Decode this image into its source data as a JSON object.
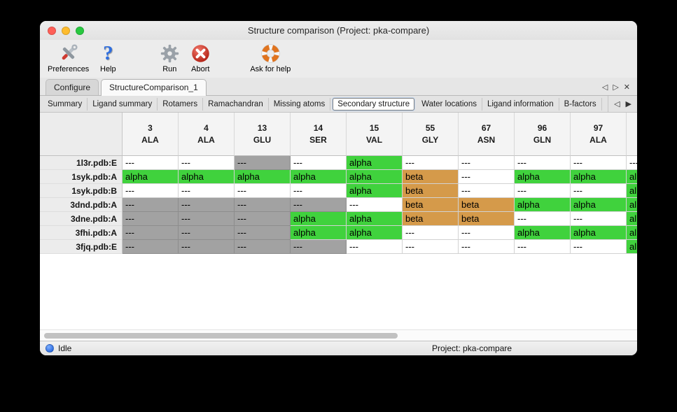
{
  "window": {
    "title": "Structure comparison (Project: pka-compare)"
  },
  "toolbar": {
    "items": [
      {
        "label": "Preferences",
        "icon": "tools-icon"
      },
      {
        "label": "Help",
        "icon": "question-icon"
      },
      {
        "label": "Run",
        "icon": "gear-icon"
      },
      {
        "label": "Abort",
        "icon": "abort-icon"
      },
      {
        "label": "Ask for help",
        "icon": "lifering-icon"
      }
    ]
  },
  "tabs": {
    "items": [
      {
        "label": "Configure",
        "active": false
      },
      {
        "label": "StructureComparison_1",
        "active": true
      }
    ]
  },
  "subtabs": {
    "items": [
      "Summary",
      "Ligand summary",
      "Rotamers",
      "Ramachandran",
      "Missing atoms",
      "Secondary structure",
      "Water locations",
      "Ligand information",
      "B-factors"
    ],
    "selected": "Secondary structure"
  },
  "icons": {
    "tab_prev": "◁",
    "tab_next": "▷",
    "tab_close": "✕",
    "subtab_prev": "◁",
    "subtab_next": "▶"
  },
  "table": {
    "columns": [
      {
        "number": "3",
        "residue": "ALA"
      },
      {
        "number": "4",
        "residue": "ALA"
      },
      {
        "number": "13",
        "residue": "GLU"
      },
      {
        "number": "14",
        "residue": "SER"
      },
      {
        "number": "15",
        "residue": "VAL"
      },
      {
        "number": "55",
        "residue": "GLY"
      },
      {
        "number": "67",
        "residue": "ASN"
      },
      {
        "number": "96",
        "residue": "GLN"
      },
      {
        "number": "97",
        "residue": "ALA"
      },
      {
        "number": "",
        "residue": ""
      }
    ],
    "rows": [
      {
        "name": "1l3r.pdb:E",
        "cells": [
          {
            "text": "---",
            "type": "plain"
          },
          {
            "text": "---",
            "type": "plain"
          },
          {
            "text": "---",
            "type": "gray"
          },
          {
            "text": "---",
            "type": "plain"
          },
          {
            "text": "alpha",
            "type": "alpha"
          },
          {
            "text": "---",
            "type": "plain"
          },
          {
            "text": "---",
            "type": "plain"
          },
          {
            "text": "---",
            "type": "plain"
          },
          {
            "text": "---",
            "type": "plain"
          },
          {
            "text": "---",
            "type": "plain"
          }
        ]
      },
      {
        "name": "1syk.pdb:A",
        "cells": [
          {
            "text": "alpha",
            "type": "alpha"
          },
          {
            "text": "alpha",
            "type": "alpha"
          },
          {
            "text": "alpha",
            "type": "alpha"
          },
          {
            "text": "alpha",
            "type": "alpha"
          },
          {
            "text": "alpha",
            "type": "alpha"
          },
          {
            "text": "beta",
            "type": "beta"
          },
          {
            "text": "---",
            "type": "plain"
          },
          {
            "text": "alpha",
            "type": "alpha"
          },
          {
            "text": "alpha",
            "type": "alpha"
          },
          {
            "text": "alpha",
            "type": "alpha"
          }
        ]
      },
      {
        "name": "1syk.pdb:B",
        "cells": [
          {
            "text": "---",
            "type": "plain"
          },
          {
            "text": "---",
            "type": "plain"
          },
          {
            "text": "---",
            "type": "plain"
          },
          {
            "text": "---",
            "type": "plain"
          },
          {
            "text": "alpha",
            "type": "alpha"
          },
          {
            "text": "beta",
            "type": "beta"
          },
          {
            "text": "---",
            "type": "plain"
          },
          {
            "text": "---",
            "type": "plain"
          },
          {
            "text": "---",
            "type": "plain"
          },
          {
            "text": "alpha",
            "type": "alpha"
          }
        ]
      },
      {
        "name": "3dnd.pdb:A",
        "cells": [
          {
            "text": "---",
            "type": "gray"
          },
          {
            "text": "---",
            "type": "gray"
          },
          {
            "text": "---",
            "type": "gray"
          },
          {
            "text": "---",
            "type": "gray"
          },
          {
            "text": "---",
            "type": "plain"
          },
          {
            "text": "beta",
            "type": "beta"
          },
          {
            "text": "beta",
            "type": "beta"
          },
          {
            "text": "alpha",
            "type": "alpha"
          },
          {
            "text": "alpha",
            "type": "alpha"
          },
          {
            "text": "alpha",
            "type": "alpha"
          }
        ]
      },
      {
        "name": "3dne.pdb:A",
        "cells": [
          {
            "text": "---",
            "type": "gray"
          },
          {
            "text": "---",
            "type": "gray"
          },
          {
            "text": "---",
            "type": "gray"
          },
          {
            "text": "alpha",
            "type": "alpha"
          },
          {
            "text": "alpha",
            "type": "alpha"
          },
          {
            "text": "beta",
            "type": "beta"
          },
          {
            "text": "beta",
            "type": "beta"
          },
          {
            "text": "---",
            "type": "plain"
          },
          {
            "text": "---",
            "type": "plain"
          },
          {
            "text": "alpha",
            "type": "alpha"
          }
        ]
      },
      {
        "name": "3fhi.pdb:A",
        "cells": [
          {
            "text": "---",
            "type": "gray"
          },
          {
            "text": "---",
            "type": "gray"
          },
          {
            "text": "---",
            "type": "gray"
          },
          {
            "text": "alpha",
            "type": "alpha"
          },
          {
            "text": "alpha",
            "type": "alpha"
          },
          {
            "text": "---",
            "type": "plain"
          },
          {
            "text": "---",
            "type": "plain"
          },
          {
            "text": "alpha",
            "type": "alpha"
          },
          {
            "text": "alpha",
            "type": "alpha"
          },
          {
            "text": "alpha",
            "type": "alpha"
          }
        ]
      },
      {
        "name": "3fjq.pdb:E",
        "cells": [
          {
            "text": "---",
            "type": "gray"
          },
          {
            "text": "---",
            "type": "gray"
          },
          {
            "text": "---",
            "type": "gray"
          },
          {
            "text": "---",
            "type": "gray"
          },
          {
            "text": "---",
            "type": "plain"
          },
          {
            "text": "---",
            "type": "plain"
          },
          {
            "text": "---",
            "type": "plain"
          },
          {
            "text": "---",
            "type": "plain"
          },
          {
            "text": "---",
            "type": "plain"
          },
          {
            "text": "alpha",
            "type": "alpha"
          }
        ]
      }
    ]
  },
  "statusbar": {
    "status": "Idle",
    "project": "Project: pka-compare"
  },
  "colors": {
    "alpha": "#40d23d",
    "beta": "#d59a4a",
    "missing": "#a2a2a2",
    "status_dot": "#1f63d7"
  }
}
